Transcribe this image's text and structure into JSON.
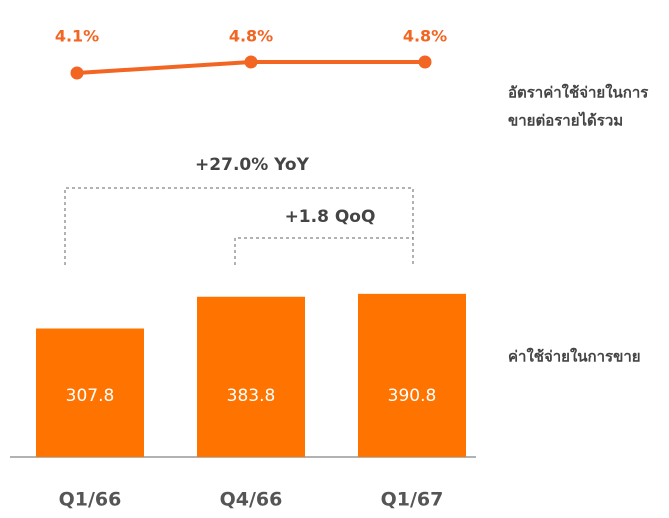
{
  "chart_data": {
    "type": "combo",
    "categories": [
      "Q1/66",
      "Q4/66",
      "Q1/67"
    ],
    "series": [
      {
        "name": [
          "อัตราค่าใช้จ่ายในการ",
          "ขายต่อรายได้รวม"
        ],
        "type": "line",
        "axis": "y2",
        "color": "#f26522",
        "values": [
          4.1,
          4.8,
          4.8
        ],
        "value_labels": [
          "4.1%",
          "4.8%",
          "4.8%"
        ]
      },
      {
        "name": "ค่าใช้จ่ายในการขาย",
        "type": "bar",
        "color": "#ff7300",
        "values": [
          307.8,
          383.8,
          390.8
        ]
      }
    ],
    "ylim": [
      0,
      400
    ],
    "y2lim": [
      3.5,
      5.5
    ],
    "annotations": [
      "+27.0% YoY",
      "+1.8 QoQ"
    ]
  }
}
